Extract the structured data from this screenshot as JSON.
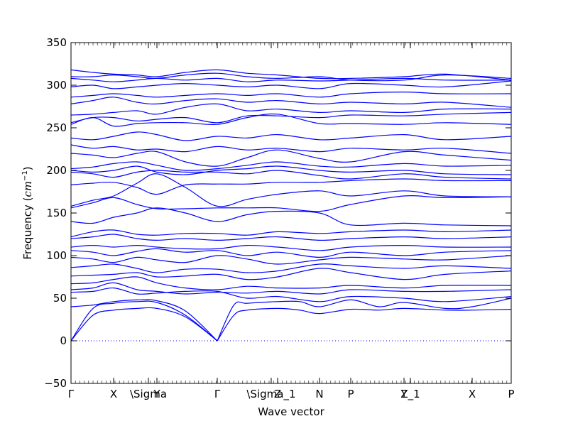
{
  "chart_data": {
    "type": "line",
    "title": "",
    "xlabel": "Wave vector",
    "ylabel": "Frequency (cm⁻¹)",
    "ylabel_parts": {
      "text": "Frequency (",
      "unit_base": "cm",
      "unit_sup": "−1",
      "close": ")"
    },
    "ylim": [
      -50,
      350
    ],
    "yticks": [
      -50,
      0,
      50,
      100,
      150,
      200,
      250,
      300,
      350
    ],
    "xticks": [
      {
        "label": "Γ",
        "k": 0.0
      },
      {
        "label": "X",
        "k": 0.0968
      },
      {
        "label": "\\Sigma",
        "k": 0.1758
      },
      {
        "label": "Y",
        "k": 0.1952
      },
      {
        "label": "Γ",
        "k": 0.3323
      },
      {
        "label": "\\Sigma_1",
        "k": 0.4548
      },
      {
        "label": "Z",
        "k": 0.4694
      },
      {
        "label": "N",
        "k": 0.5645
      },
      {
        "label": "P",
        "k": 0.6355
      },
      {
        "label": "Y",
        "k": 0.7565
      },
      {
        "label": "Z_1",
        "k": 0.771
      },
      {
        "label": "X",
        "k": 0.9113
      },
      {
        "label": "P",
        "k": 1.0
      }
    ],
    "grid": false,
    "legend": "none",
    "series_color": "#0000ff",
    "zero_line": {
      "y": 0,
      "style": "dotted",
      "color": "#0000ff"
    },
    "series": [
      {
        "x": [
          0,
          0.05,
          0.0968,
          0.15,
          0.1952,
          0.26,
          0.3323
        ],
        "values": [
          0,
          30,
          36,
          38,
          38,
          28,
          0
        ]
      },
      {
        "x": [
          0,
          0.05,
          0.0968,
          0.15,
          0.1952,
          0.26,
          0.3323
        ],
        "values": [
          0,
          38,
          44,
          46,
          45,
          30,
          0
        ]
      },
      {
        "x": [
          0,
          0.05,
          0.0968,
          0.15,
          0.1952,
          0.26,
          0.3323
        ],
        "values": [
          40,
          42,
          46,
          48,
          47,
          35,
          0
        ]
      },
      {
        "x": [
          0.3323,
          0.37,
          0.4,
          0.4694,
          0.52,
          0.5645,
          0.6355,
          0.7,
          0.7565,
          0.85,
          0.9113,
          1.0
        ],
        "values": [
          0,
          30,
          36,
          38,
          36,
          32,
          37,
          36,
          38,
          36,
          36,
          37
        ]
      },
      {
        "x": [
          0.3323,
          0.37,
          0.4,
          0.4694,
          0.52,
          0.5645,
          0.6355,
          0.7,
          0.7565,
          0.85,
          0.9113,
          1.0
        ],
        "values": [
          0,
          42,
          44,
          46,
          46,
          40,
          48,
          40,
          45,
          38,
          40,
          50
        ]
      },
      {
        "x": [
          0,
          0.05,
          0.0968,
          0.15,
          0.1952,
          0.26,
          0.3323,
          0.4,
          0.4694,
          0.5645,
          0.6355,
          0.7565,
          0.85,
          1.0
        ],
        "values": [
          57,
          58,
          62,
          55,
          56,
          58,
          58,
          50,
          52,
          46,
          52,
          50,
          46,
          52
        ]
      },
      {
        "x": [
          0,
          0.05,
          0.0968,
          0.15,
          0.1952,
          0.26,
          0.3323,
          0.4,
          0.4694,
          0.5645,
          0.6355,
          0.7565,
          0.85,
          1.0
        ],
        "values": [
          60,
          62,
          68,
          60,
          58,
          55,
          57,
          56,
          58,
          55,
          60,
          58,
          58,
          60
        ]
      },
      {
        "x": [
          0,
          0.05,
          0.0968,
          0.15,
          0.1952,
          0.26,
          0.3323,
          0.4,
          0.4694,
          0.5645,
          0.6355,
          0.7565,
          0.85,
          1.0
        ],
        "values": [
          67,
          68,
          72,
          75,
          68,
          62,
          60,
          64,
          62,
          62,
          65,
          62,
          65,
          65
        ]
      },
      {
        "x": [
          0,
          0.05,
          0.0968,
          0.15,
          0.1952,
          0.26,
          0.3323,
          0.4,
          0.4694,
          0.5645,
          0.6355,
          0.7565,
          0.85,
          1.0
        ],
        "values": [
          76,
          77,
          78,
          80,
          75,
          76,
          78,
          72,
          75,
          85,
          80,
          72,
          78,
          82
        ]
      },
      {
        "x": [
          0,
          0.05,
          0.0968,
          0.15,
          0.1952,
          0.26,
          0.3323,
          0.4,
          0.4694,
          0.5645,
          0.6355,
          0.7565,
          0.85,
          1.0
        ],
        "values": [
          86,
          88,
          90,
          85,
          80,
          84,
          84,
          80,
          82,
          90,
          88,
          85,
          88,
          85
        ]
      },
      {
        "x": [
          0,
          0.05,
          0.0968,
          0.15,
          0.1952,
          0.26,
          0.3323,
          0.4,
          0.4694,
          0.5645,
          0.6355,
          0.7565,
          0.85,
          1.0
        ],
        "values": [
          98,
          96,
          92,
          98,
          95,
          92,
          100,
          96,
          90,
          95,
          98,
          96,
          95,
          100
        ]
      },
      {
        "x": [
          0,
          0.05,
          0.0968,
          0.15,
          0.1952,
          0.26,
          0.3323,
          0.4,
          0.4694,
          0.5645,
          0.6355,
          0.7565,
          0.85,
          1.0
        ],
        "values": [
          106,
          104,
          100,
          105,
          108,
          104,
          106,
          100,
          104,
          98,
          104,
          100,
          104,
          106
        ]
      },
      {
        "x": [
          0,
          0.05,
          0.0968,
          0.15,
          0.1952,
          0.26,
          0.3323,
          0.4,
          0.4694,
          0.5645,
          0.6355,
          0.7565,
          0.85,
          1.0
        ],
        "values": [
          110,
          112,
          110,
          112,
          110,
          108,
          108,
          112,
          110,
          106,
          110,
          112,
          110,
          110
        ]
      },
      {
        "x": [
          0,
          0.05,
          0.0968,
          0.15,
          0.1952,
          0.26,
          0.3323,
          0.4,
          0.4694,
          0.5645,
          0.6355,
          0.7565,
          0.85,
          1.0
        ],
        "values": [
          120,
          122,
          125,
          120,
          118,
          120,
          118,
          120,
          122,
          118,
          120,
          122,
          120,
          122
        ]
      },
      {
        "x": [
          0,
          0.05,
          0.0968,
          0.15,
          0.1952,
          0.26,
          0.3323,
          0.4,
          0.4694,
          0.5645,
          0.6355,
          0.7565,
          0.85,
          1.0
        ],
        "values": [
          122,
          128,
          130,
          125,
          124,
          126,
          126,
          124,
          128,
          126,
          128,
          130,
          128,
          130
        ]
      },
      {
        "x": [
          0,
          0.05,
          0.0968,
          0.15,
          0.1952,
          0.26,
          0.3323,
          0.4,
          0.4694,
          0.5645,
          0.6355,
          0.7565,
          0.85,
          1.0
        ],
        "values": [
          140,
          138,
          145,
          150,
          156,
          150,
          140,
          148,
          152,
          150,
          136,
          138,
          136,
          135
        ]
      },
      {
        "x": [
          0,
          0.05,
          0.0968,
          0.15,
          0.1952,
          0.26,
          0.3323,
          0.4,
          0.4694,
          0.5645,
          0.6355,
          0.7565,
          0.85,
          1.0
        ],
        "values": [
          156,
          162,
          168,
          160,
          155,
          155,
          156,
          156,
          156,
          152,
          160,
          170,
          168,
          169
        ]
      },
      {
        "x": [
          0,
          0.05,
          0.0968,
          0.15,
          0.1952,
          0.26,
          0.3323,
          0.4,
          0.4694,
          0.5645,
          0.6355,
          0.7565,
          0.85,
          1.0
        ],
        "values": [
          158,
          165,
          170,
          185,
          196,
          180,
          158,
          166,
          172,
          176,
          170,
          176,
          170,
          169
        ]
      },
      {
        "x": [
          0,
          0.05,
          0.0968,
          0.15,
          0.1952,
          0.26,
          0.3323,
          0.4,
          0.4694,
          0.5645,
          0.6355,
          0.7565,
          0.85,
          1.0
        ],
        "values": [
          183,
          185,
          186,
          180,
          172,
          183,
          184,
          184,
          186,
          186,
          188,
          190,
          188,
          188
        ]
      },
      {
        "x": [
          0,
          0.05,
          0.0968,
          0.15,
          0.1952,
          0.26,
          0.3323,
          0.4,
          0.4694,
          0.5645,
          0.6355,
          0.7565,
          0.85,
          1.0
        ],
        "values": [
          198,
          196,
          192,
          198,
          200,
          198,
          198,
          196,
          200,
          194,
          190,
          196,
          192,
          190
        ]
      },
      {
        "x": [
          0,
          0.05,
          0.0968,
          0.15,
          0.1952,
          0.26,
          0.3323,
          0.4,
          0.4694,
          0.5645,
          0.6355,
          0.7565,
          0.85,
          1.0
        ],
        "values": [
          200,
          198,
          200,
          205,
          198,
          195,
          200,
          202,
          205,
          200,
          198,
          200,
          196,
          195
        ]
      },
      {
        "x": [
          0,
          0.05,
          0.0968,
          0.15,
          0.1952,
          0.26,
          0.3323,
          0.4,
          0.4694,
          0.5645,
          0.6355,
          0.7565,
          0.85,
          1.0
        ],
        "values": [
          202,
          204,
          208,
          210,
          206,
          200,
          202,
          206,
          210,
          205,
          204,
          208,
          205,
          206
        ]
      },
      {
        "x": [
          0,
          0.05,
          0.0968,
          0.15,
          0.1952,
          0.26,
          0.3323,
          0.4,
          0.4694,
          0.5645,
          0.6355,
          0.7565,
          0.85,
          1.0
        ],
        "values": [
          220,
          218,
          215,
          220,
          222,
          210,
          205,
          215,
          224,
          214,
          210,
          222,
          218,
          212
        ]
      },
      {
        "x": [
          0,
          0.05,
          0.0968,
          0.15,
          0.1952,
          0.26,
          0.3323,
          0.4,
          0.4694,
          0.5645,
          0.6355,
          0.7565,
          0.85,
          1.0
        ],
        "values": [
          230,
          226,
          228,
          224,
          225,
          222,
          228,
          224,
          226,
          222,
          226,
          224,
          226,
          220
        ]
      },
      {
        "x": [
          0,
          0.05,
          0.0968,
          0.15,
          0.1952,
          0.26,
          0.3323,
          0.4,
          0.4694,
          0.5645,
          0.6355,
          0.7565,
          0.85,
          1.0
        ],
        "values": [
          238,
          236,
          240,
          245,
          242,
          235,
          240,
          238,
          242,
          236,
          238,
          242,
          236,
          240
        ]
      },
      {
        "x": [
          0,
          0.05,
          0.0968,
          0.15,
          0.1952,
          0.26,
          0.3323,
          0.4,
          0.4694,
          0.5645,
          0.6355,
          0.7565,
          0.85,
          1.0
        ],
        "values": [
          254,
          262,
          252,
          255,
          256,
          256,
          254,
          262,
          266,
          255,
          255,
          254,
          256,
          254
        ]
      },
      {
        "x": [
          0,
          0.05,
          0.0968,
          0.15,
          0.1952,
          0.26,
          0.3323,
          0.4,
          0.4694,
          0.5645,
          0.6355,
          0.7565,
          0.85,
          1.0
        ],
        "values": [
          256,
          262,
          262,
          258,
          260,
          262,
          256,
          264,
          264,
          262,
          265,
          264,
          266,
          268
        ]
      },
      {
        "x": [
          0,
          0.05,
          0.0968,
          0.15,
          0.1952,
          0.26,
          0.3323,
          0.4,
          0.4694,
          0.5645,
          0.6355,
          0.7565,
          0.85,
          1.0
        ],
        "values": [
          265,
          266,
          268,
          270,
          266,
          274,
          278,
          270,
          272,
          268,
          270,
          268,
          272,
          272
        ]
      },
      {
        "x": [
          0,
          0.05,
          0.0968,
          0.15,
          0.1952,
          0.26,
          0.3323,
          0.4,
          0.4694,
          0.5645,
          0.6355,
          0.7565,
          0.85,
          1.0
        ],
        "values": [
          278,
          282,
          286,
          280,
          278,
          282,
          284,
          280,
          282,
          278,
          280,
          278,
          280,
          274
        ]
      },
      {
        "x": [
          0,
          0.05,
          0.0968,
          0.15,
          0.1952,
          0.26,
          0.3323,
          0.4,
          0.4694,
          0.5645,
          0.6355,
          0.7565,
          0.85,
          1.0
        ],
        "values": [
          286,
          288,
          290,
          288,
          286,
          288,
          290,
          288,
          290,
          286,
          290,
          292,
          290,
          290
        ]
      },
      {
        "x": [
          0,
          0.05,
          0.0968,
          0.15,
          0.1952,
          0.26,
          0.3323,
          0.4,
          0.4694,
          0.5645,
          0.6355,
          0.7565,
          0.85,
          1.0
        ],
        "values": [
          298,
          300,
          296,
          298,
          300,
          302,
          300,
          298,
          300,
          296,
          302,
          300,
          298,
          305
        ]
      },
      {
        "x": [
          0,
          0.05,
          0.0968,
          0.15,
          0.1952,
          0.26,
          0.3323,
          0.4,
          0.4694,
          0.5645,
          0.6355,
          0.7565,
          0.85,
          1.0
        ],
        "values": [
          308,
          306,
          304,
          306,
          308,
          306,
          308,
          304,
          306,
          305,
          306,
          308,
          306,
          306
        ]
      },
      {
        "x": [
          0,
          0.05,
          0.0968,
          0.15,
          0.1952,
          0.26,
          0.3323,
          0.4,
          0.4694,
          0.5645,
          0.6355,
          0.7565,
          0.85,
          1.0
        ],
        "values": [
          310,
          310,
          312,
          310,
          308,
          312,
          314,
          310,
          308,
          310,
          306,
          306,
          312,
          308
        ]
      },
      {
        "x": [
          0,
          0.05,
          0.0968,
          0.15,
          0.1952,
          0.26,
          0.3323,
          0.4,
          0.4694,
          0.5645,
          0.6355,
          0.7565,
          0.85,
          1.0
        ],
        "values": [
          318,
          315,
          313,
          312,
          310,
          315,
          318,
          314,
          312,
          308,
          308,
          310,
          313,
          306
        ]
      }
    ]
  }
}
